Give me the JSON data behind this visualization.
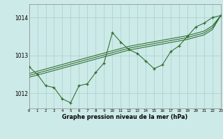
{
  "xlabel": "Graphe pression niveau de la mer (hPa)",
  "xlim": [
    0,
    23
  ],
  "ylim": [
    1011.6,
    1014.35
  ],
  "yticks": [
    1012,
    1013,
    1014
  ],
  "xticks": [
    0,
    1,
    2,
    3,
    4,
    5,
    6,
    7,
    8,
    9,
    10,
    11,
    12,
    13,
    14,
    15,
    16,
    17,
    18,
    19,
    20,
    21,
    22,
    23
  ],
  "bg_color": "#cceae7",
  "grid_color": "#aacccc",
  "line_color": "#2d6a2d",
  "y_main": [
    1012.7,
    1012.5,
    1012.2,
    1012.15,
    1011.85,
    1011.75,
    1012.2,
    1012.25,
    1012.55,
    1012.8,
    1013.6,
    1013.35,
    1013.15,
    1013.05,
    1012.85,
    1012.65,
    1012.75,
    1013.1,
    1013.25,
    1013.5,
    1013.75,
    1013.85,
    1014.0,
    1014.05
  ],
  "y_trend1": [
    1012.52,
    1012.58,
    1012.64,
    1012.7,
    1012.76,
    1012.82,
    1012.88,
    1012.94,
    1013.0,
    1013.06,
    1013.12,
    1013.18,
    1013.24,
    1013.28,
    1013.32,
    1013.36,
    1013.4,
    1013.44,
    1013.48,
    1013.52,
    1013.58,
    1013.64,
    1013.78,
    1014.05
  ],
  "y_trend2": [
    1012.47,
    1012.53,
    1012.59,
    1012.65,
    1012.71,
    1012.77,
    1012.83,
    1012.89,
    1012.95,
    1013.01,
    1013.07,
    1013.13,
    1013.19,
    1013.23,
    1013.27,
    1013.31,
    1013.35,
    1013.39,
    1013.43,
    1013.47,
    1013.53,
    1013.59,
    1013.73,
    1014.05
  ],
  "y_trend3": [
    1012.42,
    1012.48,
    1012.54,
    1012.6,
    1012.66,
    1012.72,
    1012.78,
    1012.84,
    1012.9,
    1012.96,
    1013.02,
    1013.08,
    1013.14,
    1013.18,
    1013.22,
    1013.26,
    1013.3,
    1013.34,
    1013.38,
    1013.42,
    1013.48,
    1013.54,
    1013.68,
    1014.05
  ]
}
